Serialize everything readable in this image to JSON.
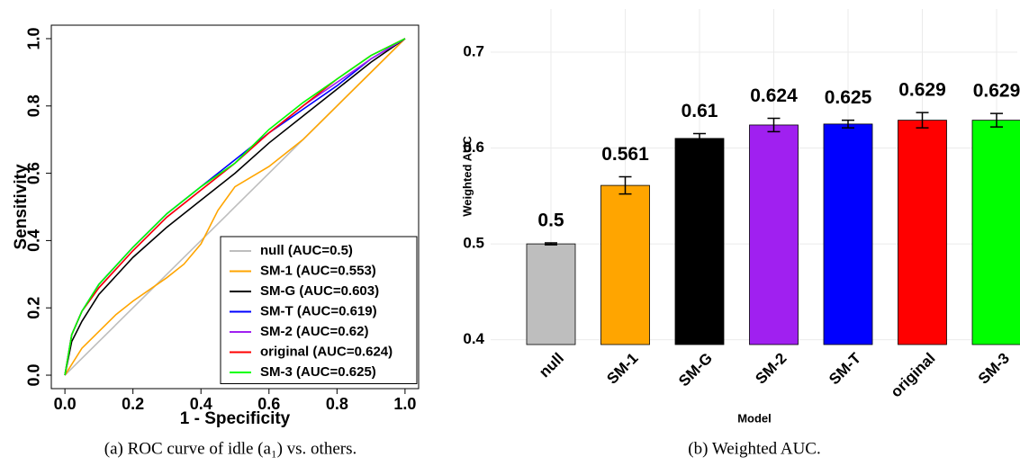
{
  "chart_data": [
    {
      "type": "line",
      "xlabel": "1 - Specificity",
      "ylabel": "Sensitivity",
      "caption": "(a) ROC curve of idle (a₁) vs. others.",
      "xlim": [
        -0.04,
        1.04
      ],
      "ylim": [
        -0.04,
        1.04
      ],
      "xticks": [
        {
          "value": 0,
          "label": "0.0"
        },
        0.2,
        0.4,
        0.6,
        0.8,
        {
          "value": 1,
          "label": "1.0"
        }
      ],
      "yticks": [
        {
          "value": 0,
          "label": "0.0"
        },
        0.2,
        0.4,
        0.6,
        0.8,
        {
          "value": 1,
          "label": "1.0"
        }
      ],
      "legend": "bottomright",
      "series": [
        {
          "name": "null (AUC=0.5)",
          "color": "#bebebe",
          "x": [
            0,
            1
          ],
          "values": [
            0,
            1
          ]
        },
        {
          "name": "SM-1 (AUC=0.553)",
          "color": "#ffa500",
          "x": [
            0,
            0.05,
            0.1,
            0.15,
            0.2,
            0.3,
            0.35,
            0.4,
            0.45,
            0.5,
            0.6,
            0.7,
            0.8,
            0.9,
            1
          ],
          "values": [
            0,
            0.08,
            0.13,
            0.18,
            0.22,
            0.29,
            0.33,
            0.39,
            0.49,
            0.56,
            0.62,
            0.7,
            0.8,
            0.9,
            1
          ]
        },
        {
          "name": "SM-G (AUC=0.603)",
          "color": "#000000",
          "x": [
            0,
            0.02,
            0.05,
            0.1,
            0.2,
            0.3,
            0.4,
            0.5,
            0.6,
            0.7,
            0.8,
            0.9,
            1
          ],
          "values": [
            0,
            0.1,
            0.16,
            0.24,
            0.35,
            0.44,
            0.52,
            0.6,
            0.69,
            0.77,
            0.85,
            0.93,
            1
          ]
        },
        {
          "name": "SM-T (AUC=0.619)",
          "color": "#0000ff",
          "x": [
            0,
            0.02,
            0.05,
            0.1,
            0.2,
            0.3,
            0.4,
            0.5,
            0.6,
            0.7,
            0.8,
            0.9,
            1
          ],
          "values": [
            0,
            0.12,
            0.19,
            0.27,
            0.38,
            0.48,
            0.56,
            0.64,
            0.72,
            0.79,
            0.86,
            0.94,
            1
          ]
        },
        {
          "name": "SM-2 (AUC=0.62)",
          "color": "#a020f0",
          "x": [
            0,
            0.02,
            0.05,
            0.1,
            0.2,
            0.3,
            0.4,
            0.5,
            0.6,
            0.7,
            0.8,
            0.9,
            1
          ],
          "values": [
            0,
            0.12,
            0.19,
            0.26,
            0.37,
            0.47,
            0.55,
            0.63,
            0.72,
            0.8,
            0.87,
            0.94,
            1
          ]
        },
        {
          "name": "original (AUC=0.624)",
          "color": "#ff0000",
          "x": [
            0,
            0.02,
            0.05,
            0.1,
            0.2,
            0.3,
            0.4,
            0.5,
            0.6,
            0.7,
            0.8,
            0.9,
            1
          ],
          "values": [
            0,
            0.12,
            0.19,
            0.26,
            0.37,
            0.47,
            0.55,
            0.63,
            0.72,
            0.8,
            0.88,
            0.95,
            1
          ]
        },
        {
          "name": "SM-3 (AUC=0.625)",
          "color": "#00ff00",
          "x": [
            0,
            0.02,
            0.05,
            0.1,
            0.2,
            0.3,
            0.4,
            0.5,
            0.6,
            0.7,
            0.8,
            0.9,
            1
          ],
          "values": [
            0,
            0.12,
            0.19,
            0.27,
            0.38,
            0.48,
            0.56,
            0.63,
            0.73,
            0.81,
            0.88,
            0.95,
            1
          ]
        }
      ]
    },
    {
      "type": "bar",
      "xlabel": "Model",
      "ylabel": "Weighted AUC",
      "caption": "(b) Weighted AUC.",
      "categories": [
        "null",
        "SM-1",
        "SM-G",
        "SM-2",
        "SM-T",
        "original",
        "SM-3"
      ],
      "values": [
        0.5,
        0.561,
        0.61,
        0.624,
        0.625,
        0.629,
        0.629
      ],
      "errors": [
        0.001,
        0.009,
        0.005,
        0.007,
        0.004,
        0.008,
        0.007
      ],
      "colors": [
        "#bebebe",
        "#ffa500",
        "#000000",
        "#a020f0",
        "#0000ff",
        "#ff0000",
        "#00ff00"
      ],
      "ylim": [
        0.395,
        0.745
      ],
      "yticks": [
        0.4,
        0.5,
        0.6,
        0.7
      ],
      "grid": true
    }
  ]
}
